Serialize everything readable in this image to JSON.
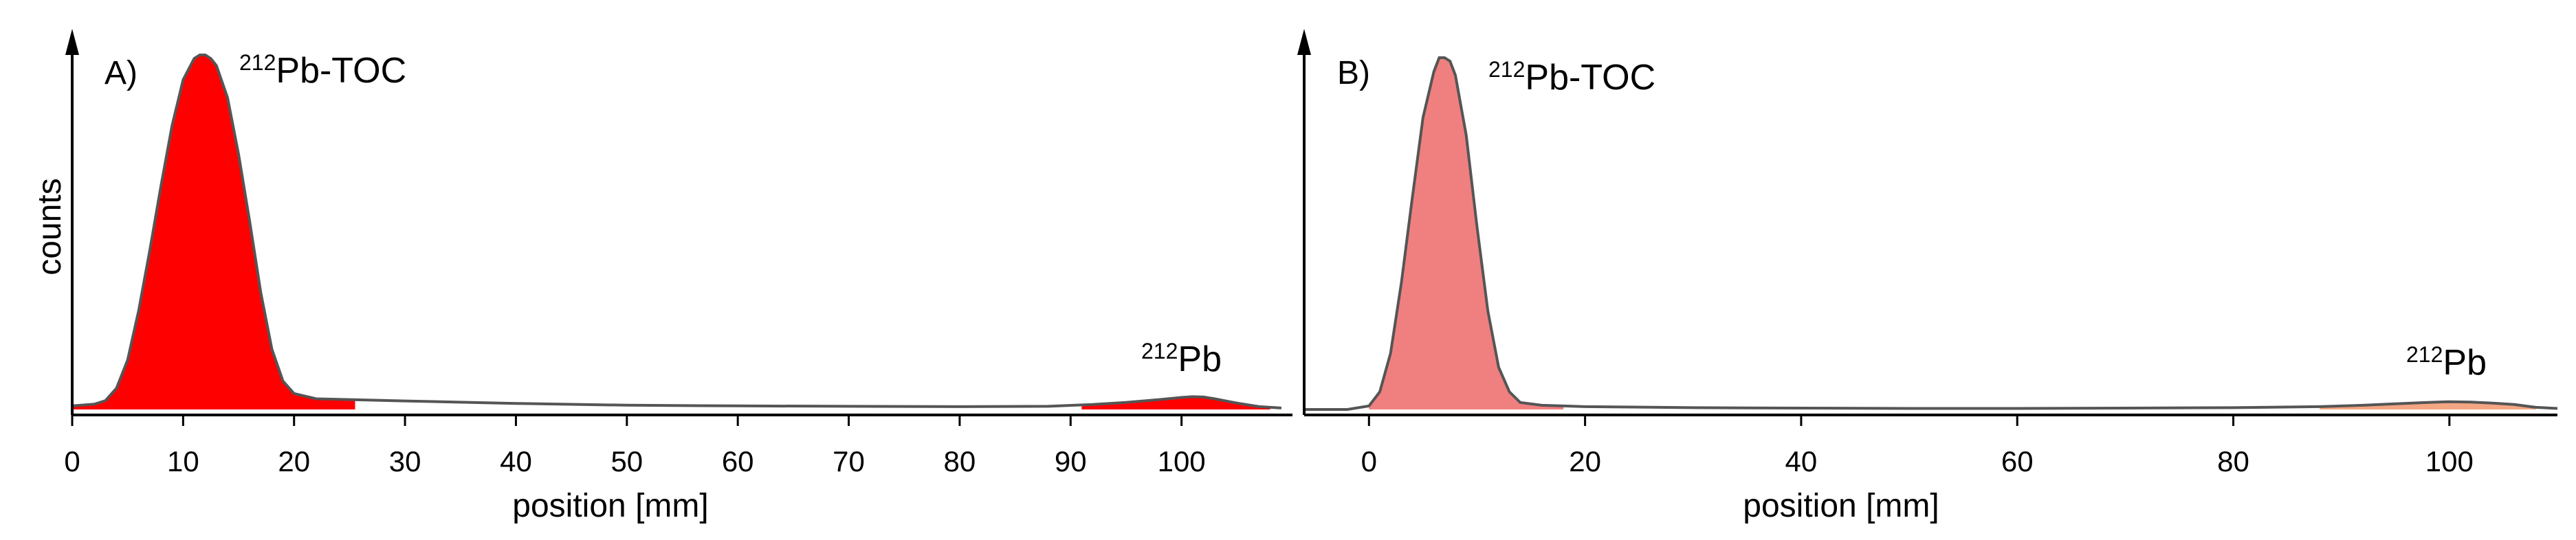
{
  "chart_data": [
    {
      "type": "area",
      "panel_label": "A)",
      "ylabel": "counts",
      "xlabel": "position [mm]",
      "xlim": [
        0,
        110
      ],
      "xticks": [
        0,
        10,
        20,
        30,
        40,
        50,
        60,
        70,
        80,
        90,
        100
      ],
      "y_tick_labels": false,
      "peaks": [
        {
          "sup": "212",
          "name": "Pb-TOC",
          "x": 12.0
        },
        {
          "sup": "212",
          "name": "Pb",
          "x": 101.0
        }
      ],
      "fill_color": "#ff0000",
      "line_color": "#555555",
      "region_fills": [
        {
          "x_start": 0,
          "x_end": 25.5,
          "color": "#ff0000"
        },
        {
          "x_start": 91,
          "x_end": 108,
          "color": "#ff0000"
        }
      ],
      "series": [
        {
          "x": [
            0,
            2,
            3,
            4,
            5,
            6,
            7,
            8,
            9,
            10,
            11,
            11.5,
            12,
            12.5,
            13,
            14,
            15,
            16,
            17,
            18,
            19,
            20,
            22,
            25,
            30,
            40,
            50,
            60,
            70,
            80,
            88,
            92,
            95,
            98,
            100,
            101,
            102,
            103,
            105,
            107,
            109
          ],
          "y": [
            0.01,
            0.015,
            0.025,
            0.06,
            0.14,
            0.28,
            0.45,
            0.63,
            0.8,
            0.93,
            0.99,
            1.0,
            1.0,
            0.99,
            0.97,
            0.88,
            0.72,
            0.53,
            0.33,
            0.17,
            0.08,
            0.045,
            0.03,
            0.028,
            0.024,
            0.017,
            0.012,
            0.01,
            0.009,
            0.008,
            0.009,
            0.014,
            0.02,
            0.028,
            0.034,
            0.036,
            0.035,
            0.03,
            0.018,
            0.008,
            0.004
          ]
        }
      ]
    },
    {
      "type": "area",
      "panel_label": "B)",
      "ylabel": "",
      "xlabel": "position [mm]",
      "xlim": [
        -6,
        110
      ],
      "xticks": [
        0,
        20,
        40,
        60,
        80,
        100
      ],
      "y_tick_labels": false,
      "peaks": [
        {
          "sup": "212",
          "name": "Pb-TOC",
          "x": 7.0
        },
        {
          "sup": "212",
          "name": "Pb",
          "x": 100.0
        }
      ],
      "fill_color": "#f08080",
      "line_color": "#555555",
      "region_fills": [
        {
          "x_start": 0,
          "x_end": 18,
          "color": "#f08080"
        },
        {
          "x_start": 88,
          "x_end": 108,
          "color": "#f4a582"
        }
      ],
      "series": [
        {
          "x": [
            -6,
            -2,
            0,
            1,
            2,
            3,
            4,
            5,
            6,
            6.5,
            7,
            7.5,
            8,
            9,
            10,
            11,
            12,
            13,
            14,
            16,
            20,
            30,
            40,
            50,
            60,
            70,
            80,
            88,
            92,
            95,
            98,
            100,
            102,
            104,
            106,
            108,
            110
          ],
          "y": [
            0.0,
            0.0,
            0.01,
            0.05,
            0.16,
            0.36,
            0.6,
            0.83,
            0.96,
            1.0,
            1.0,
            0.99,
            0.95,
            0.78,
            0.52,
            0.28,
            0.12,
            0.05,
            0.02,
            0.012,
            0.008,
            0.005,
            0.004,
            0.003,
            0.003,
            0.004,
            0.005,
            0.008,
            0.012,
            0.016,
            0.02,
            0.022,
            0.021,
            0.018,
            0.014,
            0.006,
            0.003
          ]
        }
      ]
    }
  ]
}
